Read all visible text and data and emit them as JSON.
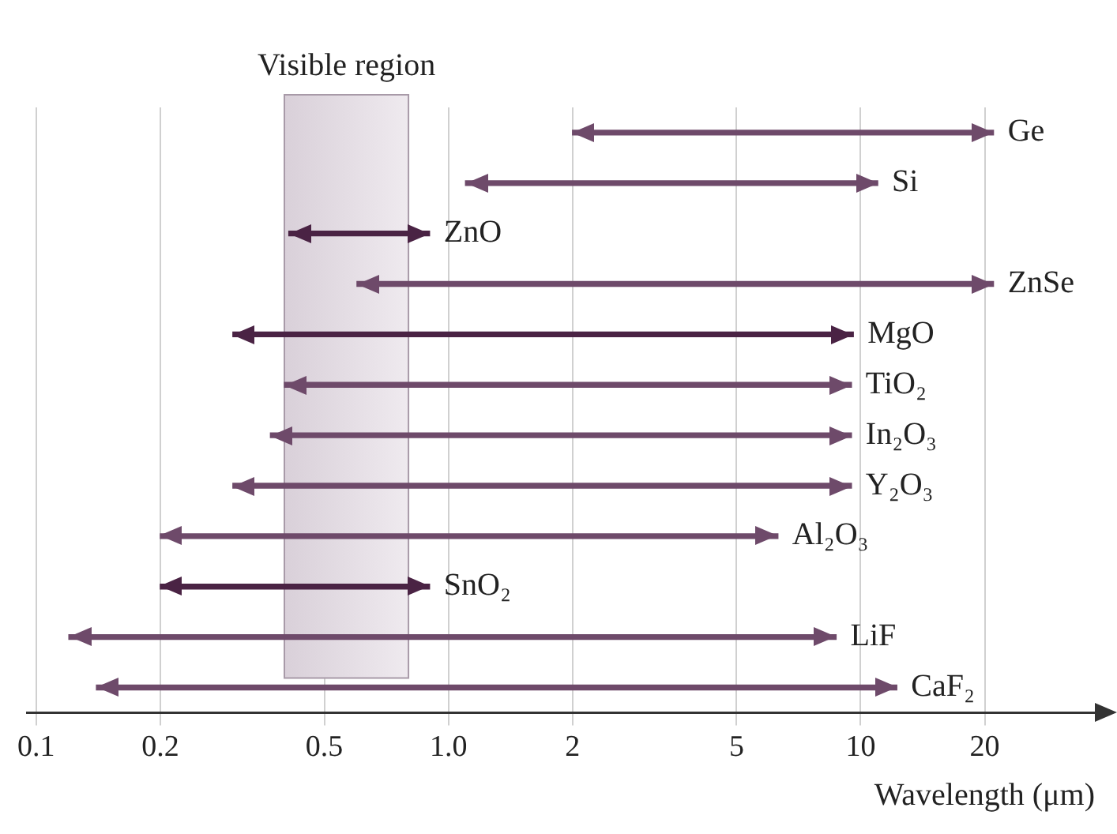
{
  "chart_data": {
    "type": "bar",
    "orientation": "horizontal",
    "xlabel": "Wavelength (μm)",
    "categories": [
      "Ge",
      "Si",
      "ZnO",
      "ZnSe",
      "MgO",
      "TiO₂",
      "In₂O₃",
      "Y₂O₃",
      "Al₂O₃",
      "SnO₂",
      "LiF",
      "CaF₂"
    ],
    "base": [
      2,
      1.1,
      0.41,
      0.6,
      0.3,
      0.4,
      0.37,
      0.3,
      0.2,
      0.2,
      0.12,
      0.14
    ],
    "values": [
      19,
      9.9,
      0.49,
      20.4,
      9.3,
      9.1,
      9.13,
      9.2,
      6.1,
      0.7,
      8.6,
      12.1
    ],
    "colors": [
      "#6e4a6a",
      "#6e4a6a",
      "#4a2344",
      "#6e4a6a",
      "#4a2344",
      "#6e4a6a",
      "#6e4a6a",
      "#6e4a6a",
      "#6e4a6a",
      "#4a2344",
      "#6e4a6a",
      "#6e4a6a"
    ],
    "xlim": [
      0.095,
      37
    ],
    "xticks": [
      0.1,
      0.2,
      0.5,
      {
        "value": 1,
        "label": "1.0"
      },
      2,
      5,
      10,
      20
    ],
    "log": "x",
    "grid": "x",
    "tick_labels": "x",
    "bands": [
      {
        "axis": "x",
        "from": 0.4,
        "to": 0.8,
        "label": "Visible region",
        "color": "#d9d0d9"
      }
    ]
  }
}
